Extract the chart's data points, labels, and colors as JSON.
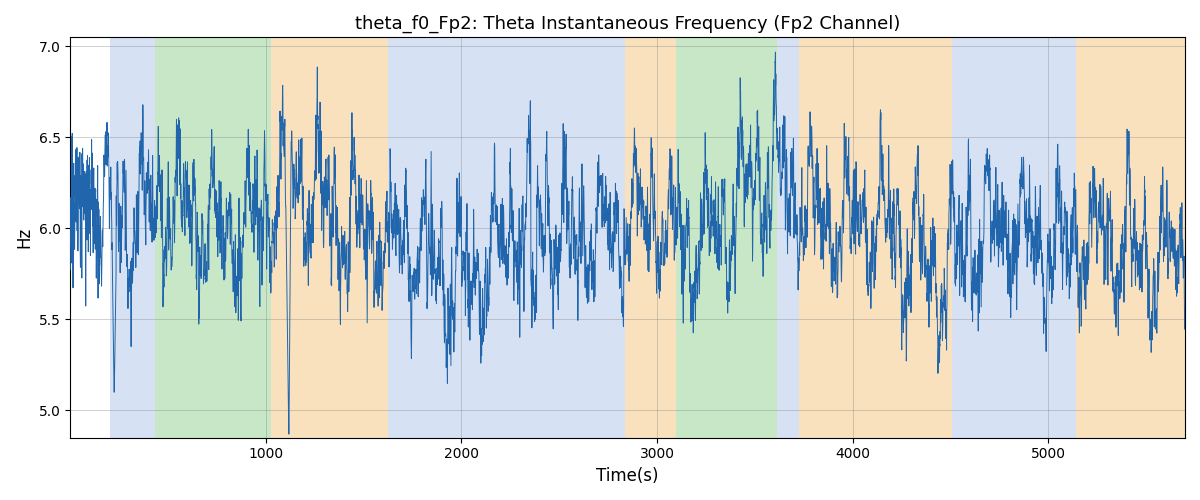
{
  "title": "theta_f0_Fp2: Theta Instantaneous Frequency (Fp2 Channel)",
  "xlabel": "Time(s)",
  "ylabel": "Hz",
  "ylim": [
    4.85,
    7.05
  ],
  "yticks": [
    5.0,
    5.5,
    6.0,
    6.5,
    7.0
  ],
  "xlim": [
    0,
    5700
  ],
  "xticks": [
    1000,
    2000,
    3000,
    4000,
    5000
  ],
  "line_color": "#2166ac",
  "bg_regions": [
    {
      "xmin": 205,
      "xmax": 435,
      "color": "#aec6e8",
      "alpha": 0.5
    },
    {
      "xmin": 435,
      "xmax": 1025,
      "color": "#90d090",
      "alpha": 0.5
    },
    {
      "xmin": 1025,
      "xmax": 1625,
      "color": "#f5c98a",
      "alpha": 0.55
    },
    {
      "xmin": 1625,
      "xmax": 2835,
      "color": "#aec6e8",
      "alpha": 0.5
    },
    {
      "xmin": 2835,
      "xmax": 3095,
      "color": "#f5c98a",
      "alpha": 0.55
    },
    {
      "xmin": 3095,
      "xmax": 3615,
      "color": "#90d090",
      "alpha": 0.5
    },
    {
      "xmin": 3615,
      "xmax": 3725,
      "color": "#aec6e8",
      "alpha": 0.5
    },
    {
      "xmin": 3725,
      "xmax": 4510,
      "color": "#f5c98a",
      "alpha": 0.55
    },
    {
      "xmin": 4510,
      "xmax": 5060,
      "color": "#aec6e8",
      "alpha": 0.5
    },
    {
      "xmin": 5060,
      "xmax": 5145,
      "color": "#aec6e8",
      "alpha": 0.5
    },
    {
      "xmin": 5145,
      "xmax": 5700,
      "color": "#f5c98a",
      "alpha": 0.55
    }
  ],
  "n_points": 5700,
  "t_start": 0,
  "t_end": 5700,
  "mean_freq": 6.0
}
